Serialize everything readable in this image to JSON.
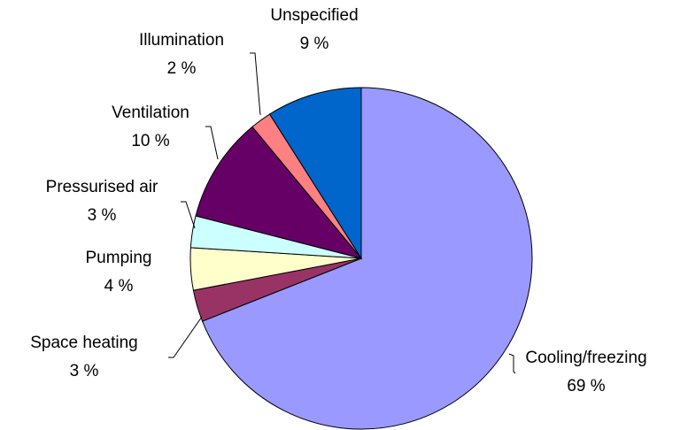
{
  "chart_data": {
    "type": "pie",
    "categories": [
      "Cooling/freezing",
      "Space heating",
      "Pumping",
      "Pressurised air",
      "Ventilation",
      "Illumination",
      "Unspecified"
    ],
    "values": [
      69,
      3,
      4,
      3,
      10,
      2,
      9
    ],
    "value_labels": [
      "69 %",
      "3 %",
      "4 %",
      "3 %",
      "10 %",
      "2 %",
      "9 %"
    ],
    "colors": [
      "#9999ff",
      "#993366",
      "#ffffcc",
      "#ccffff",
      "#660066",
      "#ff8080",
      "#0066cc"
    ]
  }
}
